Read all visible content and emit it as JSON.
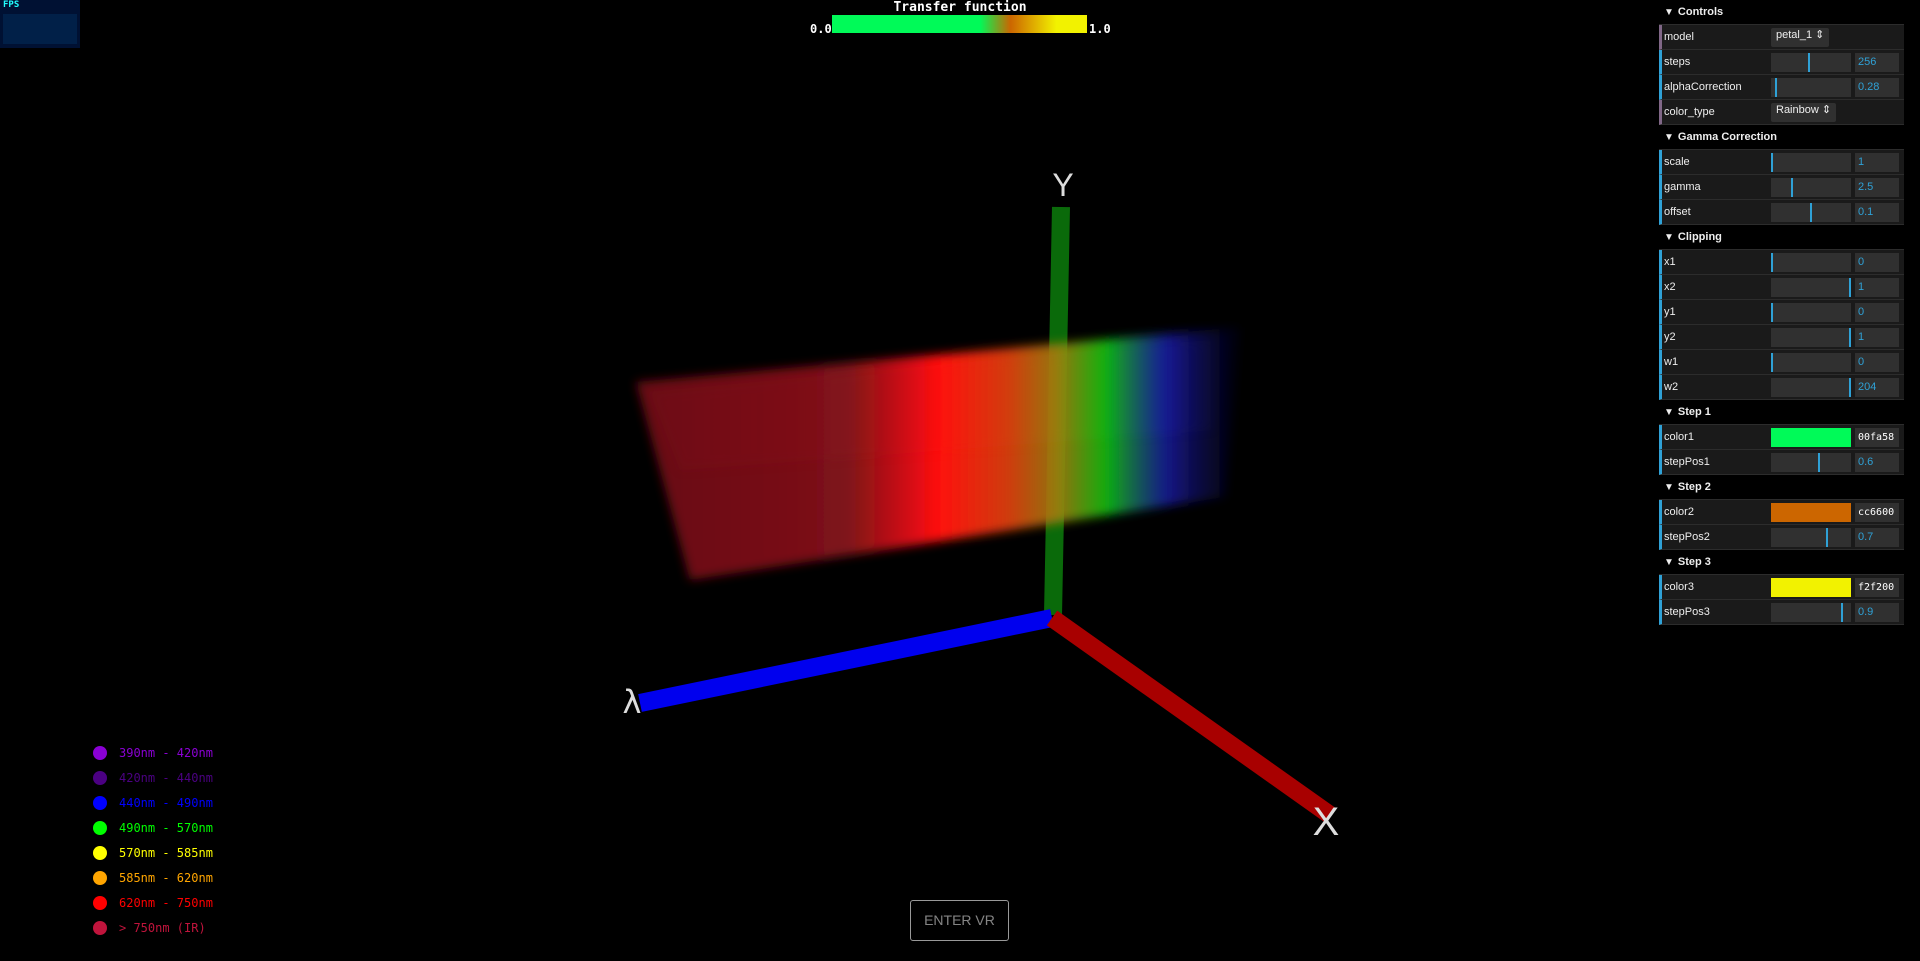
{
  "fps": {
    "label": "FPS"
  },
  "transfer": {
    "title": "Transfer function",
    "min_label": "0.0",
    "max_label": "1.0"
  },
  "axes": {
    "y": "Y",
    "x": "X",
    "lambda": "λ"
  },
  "legend": [
    {
      "label": "390nm - 420nm",
      "color": "#8a00d4"
    },
    {
      "label": "420nm - 440nm",
      "color": "#4b0082"
    },
    {
      "label": "440nm - 490nm",
      "color": "#0000ff"
    },
    {
      "label": "490nm - 570nm",
      "color": "#00ff00"
    },
    {
      "label": "570nm - 585nm",
      "color": "#ffff00"
    },
    {
      "label": "585nm - 620nm",
      "color": "#ffa500"
    },
    {
      "label": "620nm - 750nm",
      "color": "#ff0000"
    },
    {
      "label": "> 750nm (IR)",
      "color": "#c0143c"
    }
  ],
  "vr_button": "ENTER VR",
  "gui": {
    "controls": {
      "title": "Controls",
      "model_label": "model",
      "model_value": "petal_1",
      "steps_label": "steps",
      "steps_value": "256",
      "steps_fraction": 0.47,
      "alpha_label": "alphaCorrection",
      "alpha_value": "0.28",
      "alpha_fraction": 0.05,
      "color_type_label": "color_type",
      "color_type_value": "Rainbow"
    },
    "gamma": {
      "title": "Gamma Correction",
      "scale_label": "scale",
      "scale_value": "1",
      "scale_fraction": 0.0,
      "gamma_label": "gamma",
      "gamma_value": "2.5",
      "gamma_fraction": 0.25,
      "offset_label": "offset",
      "offset_value": "0.1",
      "offset_fraction": 0.5
    },
    "clipping": {
      "title": "Clipping",
      "rows": [
        {
          "label": "x1",
          "value": "0",
          "fraction": 0.0
        },
        {
          "label": "x2",
          "value": "1",
          "fraction": 1.0
        },
        {
          "label": "y1",
          "value": "0",
          "fraction": 0.0
        },
        {
          "label": "y2",
          "value": "1",
          "fraction": 1.0
        },
        {
          "label": "w1",
          "value": "0",
          "fraction": 0.0
        },
        {
          "label": "w2",
          "value": "204",
          "fraction": 1.0
        }
      ]
    },
    "step1": {
      "title": "Step 1",
      "color_label": "color1",
      "color_hex": "00fa58",
      "color": "#00fa58",
      "pos_label": "stepPos1",
      "pos_value": "0.6",
      "pos_fraction": 0.6
    },
    "step2": {
      "title": "Step 2",
      "color_label": "color2",
      "color_hex": "cc6600",
      "color": "#cc6600",
      "pos_label": "stepPos2",
      "pos_value": "0.7",
      "pos_fraction": 0.7
    },
    "step3": {
      "title": "Step 3",
      "color_label": "color3",
      "color_hex": "f2f200",
      "color": "#f2f200",
      "pos_label": "stepPos3",
      "pos_value": "0.9",
      "pos_fraction": 0.9
    }
  }
}
